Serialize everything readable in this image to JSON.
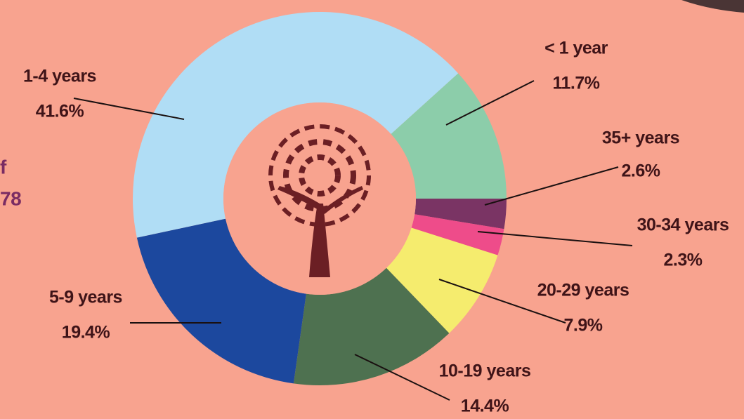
{
  "chart_data": {
    "type": "donut",
    "categories": [
      "35+ years",
      "30-34 years",
      "20-29 years",
      "10-19 years",
      "5-9 years",
      "1-4 years",
      "< 1 year"
    ],
    "values": [
      2.6,
      2.3,
      7.9,
      14.4,
      19.4,
      41.6,
      11.7
    ],
    "value_labels": [
      "2.6%",
      "2.3%",
      "7.9%",
      "14.4%",
      "19.4%",
      "41.6%",
      "11.7%"
    ],
    "colors": [
      "#7a3464",
      "#ee4c8a",
      "#f5ec6e",
      "#4e7150",
      "#1c489e",
      "#b0ddf5",
      "#8ccdaa"
    ]
  },
  "side_text": [
    "f",
    "78"
  ]
}
